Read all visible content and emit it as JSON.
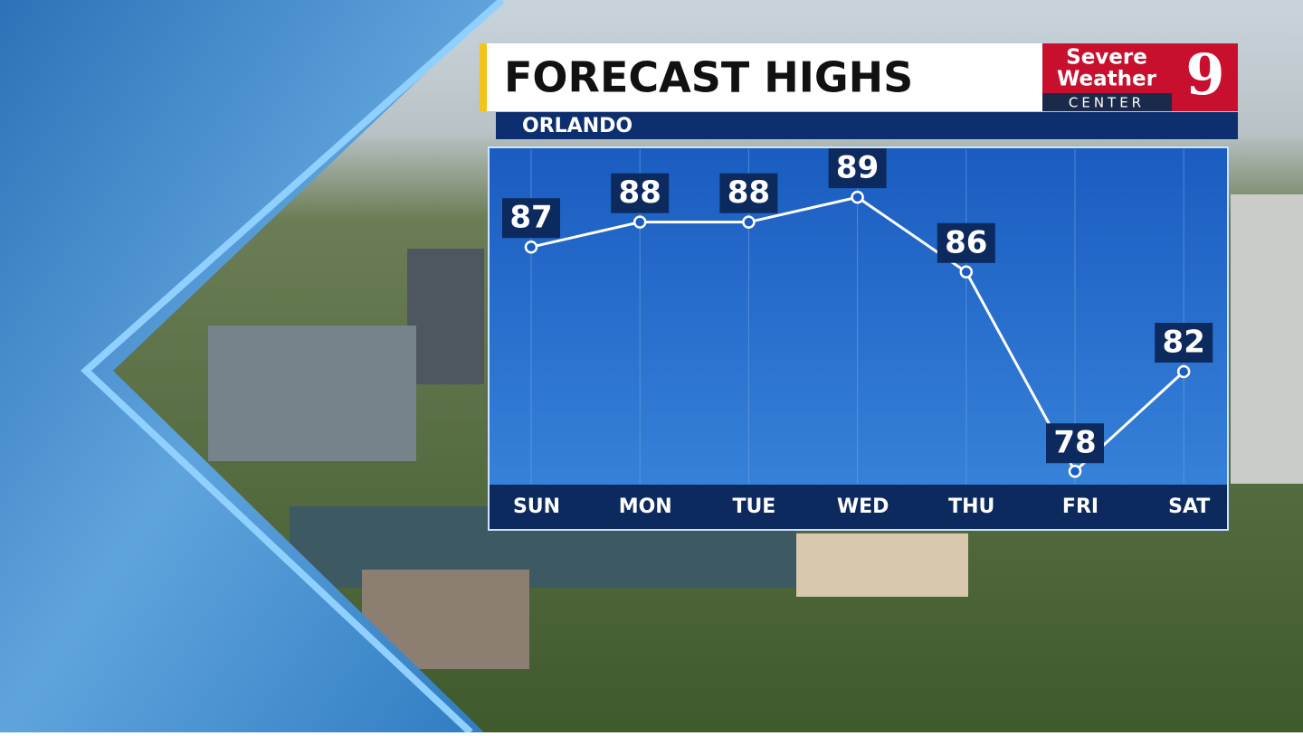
{
  "chart_data": {
    "type": "line",
    "title": "FORECAST HIGHS",
    "subtitle": "ORLANDO",
    "categories": [
      "SUN",
      "MON",
      "TUE",
      "WED",
      "THU",
      "FRI",
      "SAT"
    ],
    "values": [
      87,
      88,
      88,
      89,
      86,
      78,
      82
    ],
    "color": "#ffffff",
    "ylim": [
      77.5,
      91
    ]
  },
  "logo": {
    "line1": "Severe",
    "line2": "Weather",
    "line3": "CENTER",
    "number": "9"
  }
}
